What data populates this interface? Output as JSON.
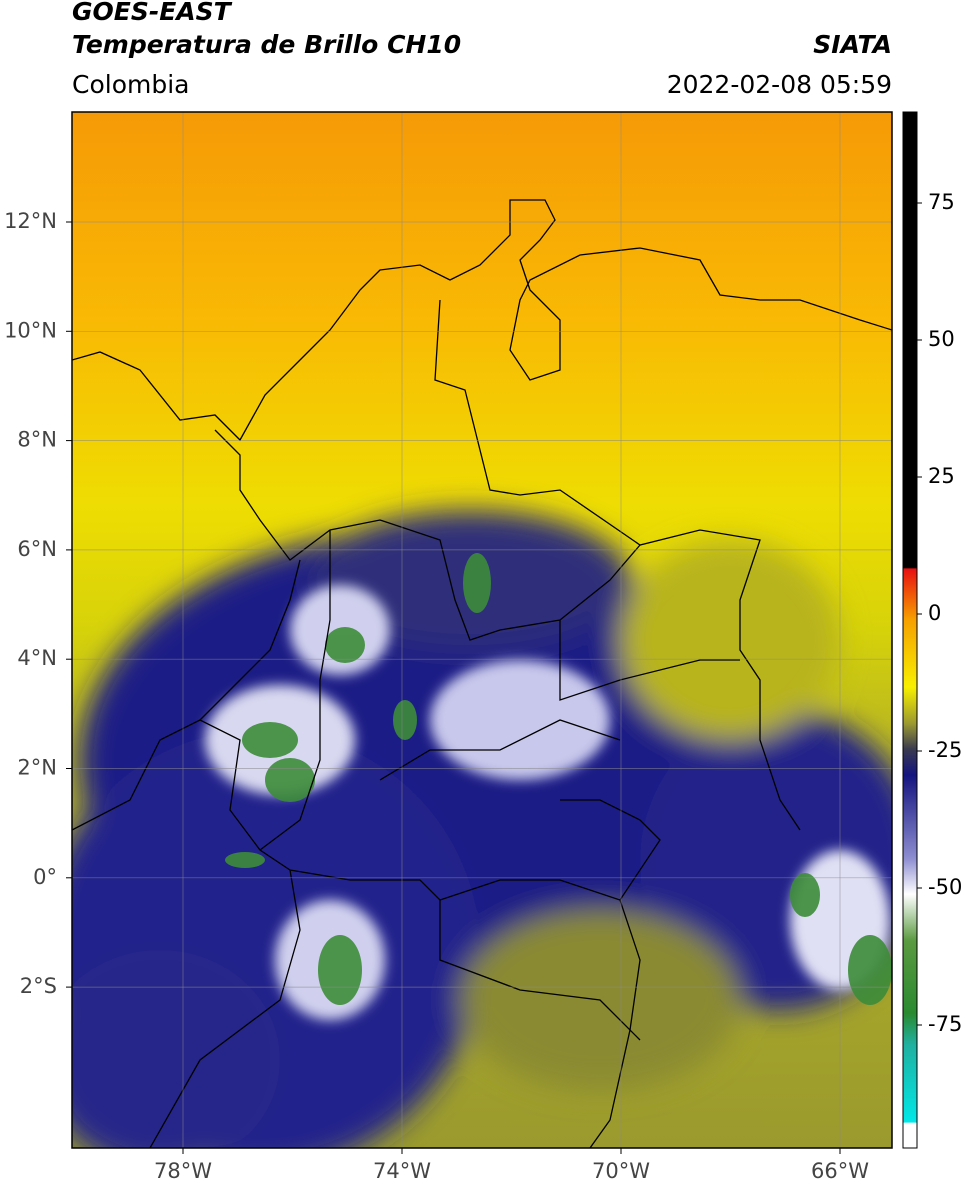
{
  "header": {
    "satellite": "GOES-EAST",
    "product": "Temperatura de Brillo CH10",
    "region": "Colombia",
    "source": "SIATA",
    "datetime": "2022-02-08 05:59"
  },
  "map": {
    "lat_labels": [
      "12°N",
      "10°N",
      "8°N",
      "6°N",
      "4°N",
      "2°N",
      "0°",
      "2°S"
    ],
    "lon_labels": [
      "78°W",
      "74°W",
      "70°W",
      "66°W"
    ]
  },
  "colorbar": {
    "labels": [
      "75",
      "50",
      "25",
      "0",
      "-25",
      "-50",
      "-75"
    ]
  }
}
